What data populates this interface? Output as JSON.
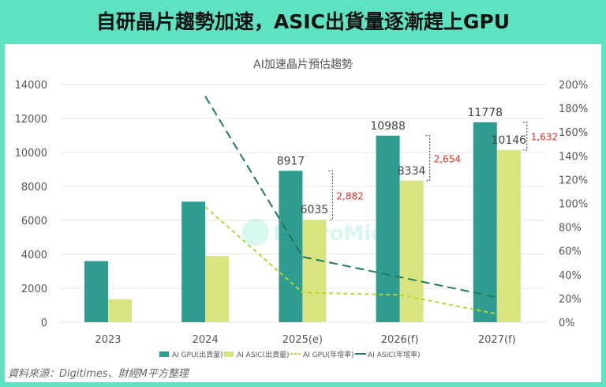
{
  "header": {
    "title": "自研晶片趨勢加速，ASIC出貨量逐漸趕上GPU"
  },
  "source": "資料來源：Digitimes、財經M平方整理",
  "watermark": "MacroMicro",
  "chart_data": {
    "type": "bar",
    "title": "AI加速晶片預估趨勢",
    "categories": [
      "2023",
      "2024",
      "2025(e)",
      "2026(f)",
      "2027(f)"
    ],
    "y_left": {
      "range": [
        0,
        14000
      ],
      "ticks": [
        "0",
        "2000",
        "4000",
        "6000",
        "8000",
        "10000",
        "12000",
        "14000"
      ]
    },
    "y_right": {
      "range": [
        0,
        200
      ],
      "unit": "%",
      "ticks": [
        "0%",
        "20%",
        "40%",
        "60%",
        "80%",
        "100%",
        "120%",
        "140%",
        "160%",
        "180%",
        "200%"
      ]
    },
    "grid": true,
    "legend": "bottom",
    "series": [
      {
        "name": "AI GPU(出貨量)",
        "type": "bar",
        "color": "#2e9c8f",
        "values": [
          3600,
          7100,
          8917,
          10988,
          11778
        ],
        "labels": [
          "",
          "",
          "8917",
          "10988",
          "11778"
        ]
      },
      {
        "name": "AI ASIC(出貨量)",
        "type": "bar",
        "color": "#d9e37f",
        "values": [
          1350,
          3900,
          6035,
          8334,
          10146
        ],
        "labels": [
          "",
          "",
          "6035",
          "8334",
          "10146"
        ]
      },
      {
        "name": "AI GPU(年增率)",
        "type": "line",
        "axis": "right",
        "dash": "short",
        "color": "#b5d63a",
        "values": [
          null,
          97,
          25,
          23,
          7
        ]
      },
      {
        "name": "AI ASIC(年增率)",
        "type": "line",
        "axis": "right",
        "dash": "long",
        "color": "#1f7a60",
        "values": [
          null,
          190,
          55,
          38,
          21
        ]
      }
    ],
    "gap_annotations": [
      "2,882",
      "2,654",
      "1,632"
    ],
    "annotation_color": "#e0302a"
  }
}
